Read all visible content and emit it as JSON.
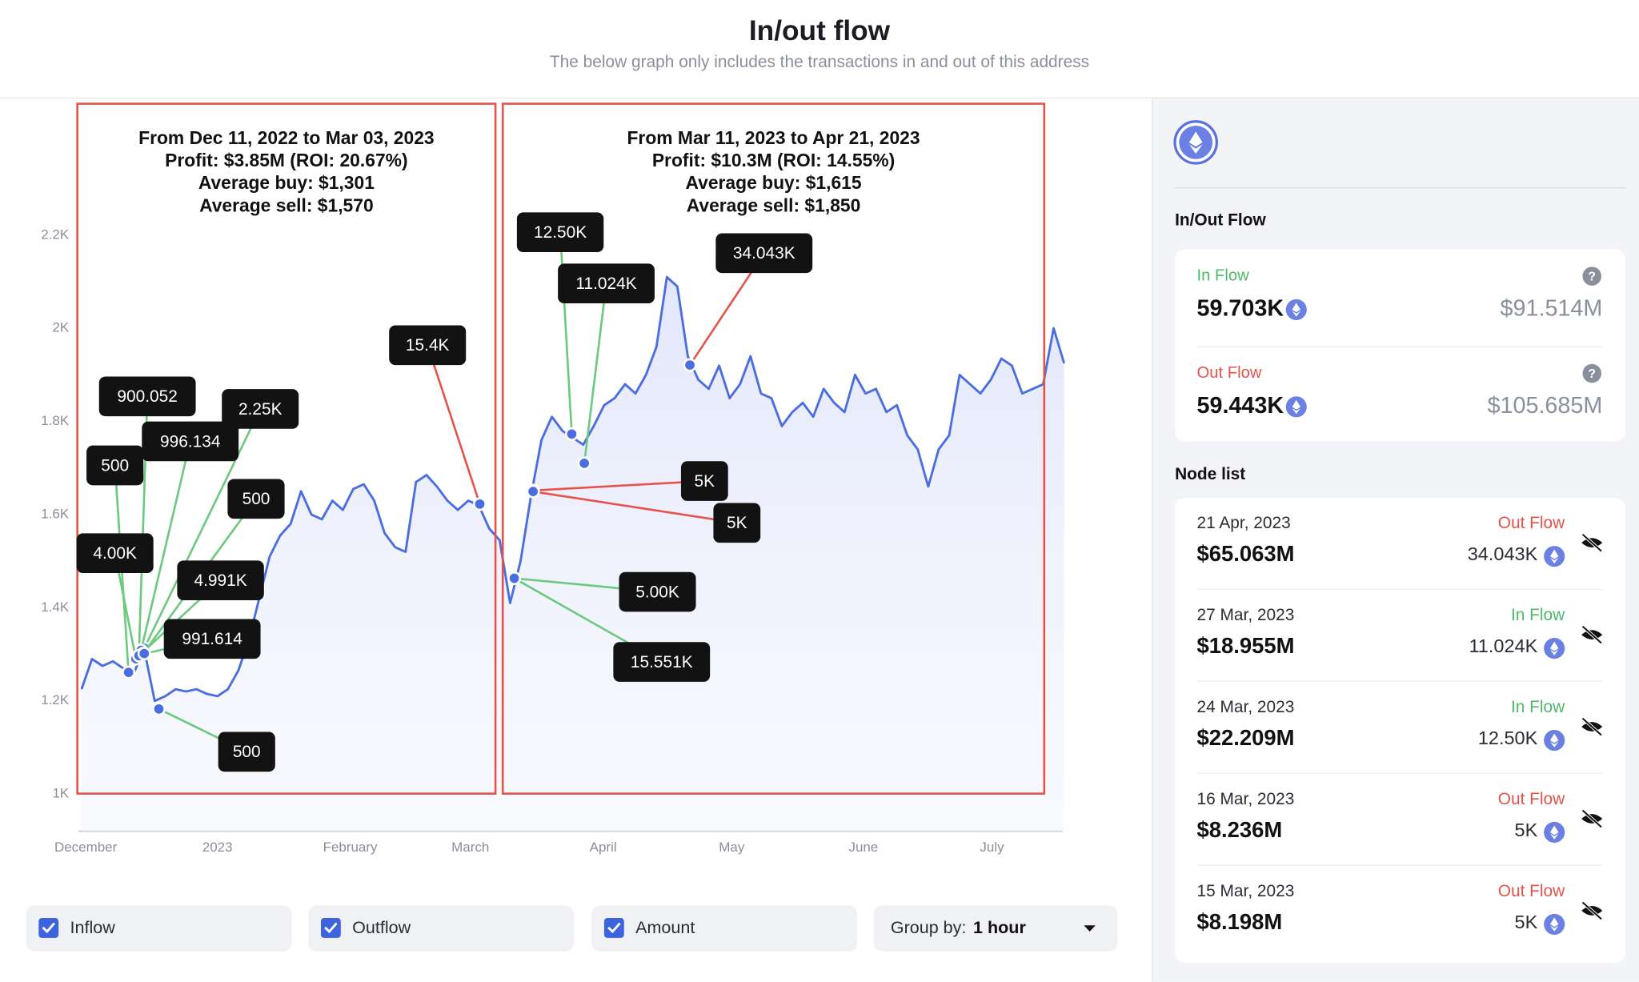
{
  "header": {
    "title": "In/out flow",
    "subtitle": "The below graph only includes the transactions in and out of this address"
  },
  "chart_data": {
    "type": "line",
    "ylim": [
      920,
      2480
    ],
    "yticks": [
      {
        "value": 1000,
        "label": "1K"
      },
      {
        "value": 1200,
        "label": "1.2K"
      },
      {
        "value": 1400,
        "label": "1.4K"
      },
      {
        "value": 1600,
        "label": "1.6K"
      },
      {
        "value": 1800,
        "label": "1.8K"
      },
      {
        "value": 2000,
        "label": "2K"
      },
      {
        "value": 2200,
        "label": "2.2K"
      }
    ],
    "xtick_labels": [
      "December",
      "2023",
      "February",
      "March",
      "April",
      "May",
      "June",
      "July"
    ],
    "series": [
      {
        "color": "#4a6ee0",
        "values": [
          1225,
          1290,
          1275,
          1285,
          1270,
          1260,
          1310,
          1200,
          1210,
          1225,
          1220,
          1225,
          1215,
          1210,
          1225,
          1265,
          1330,
          1420,
          1510,
          1555,
          1580,
          1650,
          1600,
          1590,
          1630,
          1610,
          1655,
          1665,
          1630,
          1560,
          1530,
          1520,
          1670,
          1685,
          1660,
          1630,
          1610,
          1630,
          1620,
          1570,
          1545,
          1410,
          1500,
          1640,
          1760,
          1810,
          1780,
          1765,
          1750,
          1790,
          1835,
          1850,
          1880,
          1860,
          1900,
          1960,
          2110,
          2090,
          1940,
          1890,
          1870,
          1920,
          1850,
          1880,
          1940,
          1860,
          1850,
          1790,
          1820,
          1840,
          1810,
          1870,
          1840,
          1820,
          1900,
          1860,
          1870,
          1820,
          1835,
          1770,
          1740,
          1660,
          1740,
          1770,
          1900,
          1880,
          1860,
          1890,
          1935,
          1920,
          1860,
          1870,
          1880,
          2000,
          1925
        ]
      }
    ],
    "boxes": [
      {
        "lines": [
          "From Dec 11, 2022 to Mar 03, 2023",
          "Profit: $3.85M (ROI: 20.67%)",
          "Average buy: $1,301",
          "Average sell: $1,570"
        ]
      },
      {
        "lines": [
          "From Mar 11, 2023 to Apr 21, 2023",
          "Profit: $10.3M (ROI: 14.55%)",
          "Average buy: $1,615",
          "Average sell: $1,850"
        ]
      }
    ],
    "annotations": [
      {
        "label": "900.052",
        "color": "#6cc97e"
      },
      {
        "label": "2.25K",
        "color": "#6cc97e"
      },
      {
        "label": "996.134",
        "color": "#6cc97e"
      },
      {
        "label": "500",
        "color": "#6cc97e"
      },
      {
        "label": "500",
        "color": "#6cc97e"
      },
      {
        "label": "4.00K",
        "color": "#6cc97e"
      },
      {
        "label": "4.991K",
        "color": "#6cc97e"
      },
      {
        "label": "991.614",
        "color": "#6cc97e"
      },
      {
        "label": "500",
        "color": "#6cc97e"
      },
      {
        "label": "15.4K",
        "color": "#e5534b"
      },
      {
        "label": "12.50K",
        "color": "#6cc97e"
      },
      {
        "label": "11.024K",
        "color": "#6cc97e"
      },
      {
        "label": "34.043K",
        "color": "#e5534b"
      },
      {
        "label": "5K",
        "color": "#e5534b"
      },
      {
        "label": "5K",
        "color": "#e5534b"
      },
      {
        "label": "5.00K",
        "color": "#6cc97e"
      },
      {
        "label": "15.551K",
        "color": "#6cc97e"
      }
    ]
  },
  "controls": {
    "checkboxes": [
      "Inflow",
      "Outflow",
      "Amount"
    ],
    "group_by_label": "Group by:",
    "group_by_value": "1 hour"
  },
  "side": {
    "section_title": "In/Out Flow",
    "in": {
      "label": "In Flow",
      "amount": "59.703K",
      "usd": "$91.514M"
    },
    "out": {
      "label": "Out Flow",
      "amount": "59.443K",
      "usd": "$105.685M"
    },
    "node_list_title": "Node list",
    "nodes": [
      {
        "date": "21 Apr, 2023",
        "value": "$65.063M",
        "type": "Out Flow",
        "color": "#e5534b",
        "amount": "34.043K"
      },
      {
        "date": "27 Mar, 2023",
        "value": "$18.955M",
        "type": "In Flow",
        "color": "#4cba6a",
        "amount": "11.024K"
      },
      {
        "date": "24 Mar, 2023",
        "value": "$22.209M",
        "type": "In Flow",
        "color": "#4cba6a",
        "amount": "12.50K"
      },
      {
        "date": "16 Mar, 2023",
        "value": "$8.236M",
        "type": "Out Flow",
        "color": "#e5534b",
        "amount": "5K"
      },
      {
        "date": "15 Mar, 2023",
        "value": "$8.198M",
        "type": "Out Flow",
        "color": "#e5534b",
        "amount": "5K"
      }
    ]
  }
}
